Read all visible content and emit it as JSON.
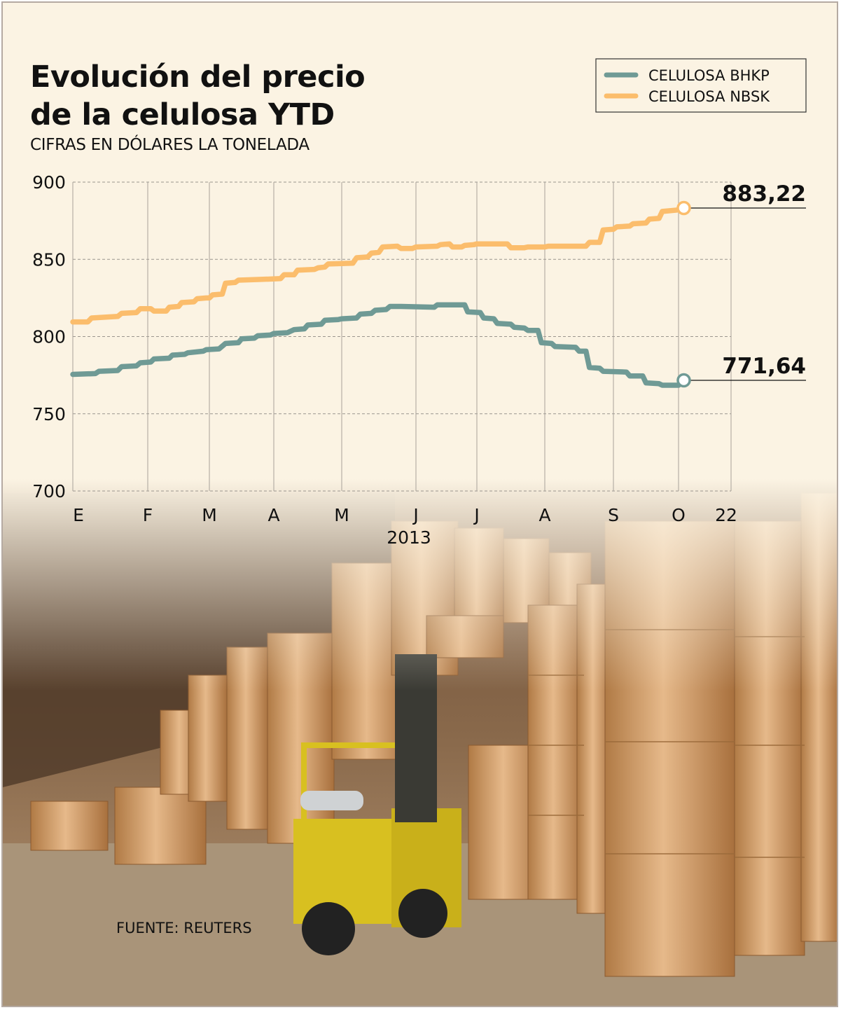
{
  "chart_data": {
    "type": "line",
    "title_lines": [
      "Evolución del precio",
      "de la celulosa YTD"
    ],
    "subtitle": "CIFRAS EN DÓLARES LA TONELADA",
    "ylim": [
      700,
      900
    ],
    "y_ticks": [
      "900",
      "850",
      "800",
      "750",
      "700"
    ],
    "x_ticks": [
      "E",
      "F",
      "M",
      "A",
      "M",
      "J",
      "J",
      "A",
      "S",
      "O",
      "22"
    ],
    "x_year_label": "2013",
    "grid": true,
    "legend_position": "top-right",
    "source": "FUENTE: REUTERS",
    "series": [
      {
        "name": "CELULOSA BHKP",
        "color": "#6f9a95",
        "end_label": "771,64",
        "points": [
          [
            0.0,
            775.5
          ],
          [
            0.3,
            776
          ],
          [
            0.35,
            777.5
          ],
          [
            0.6,
            778
          ],
          [
            0.65,
            780.5
          ],
          [
            0.85,
            781
          ],
          [
            0.9,
            783
          ],
          [
            1.05,
            783.5
          ],
          [
            1.1,
            785.5
          ],
          [
            1.35,
            786
          ],
          [
            1.4,
            788
          ],
          [
            1.6,
            788.5
          ],
          [
            1.65,
            789.5
          ],
          [
            1.9,
            790.5
          ],
          [
            1.95,
            791.5
          ],
          [
            2.15,
            792
          ],
          [
            2.25,
            795.5
          ],
          [
            2.45,
            796
          ],
          [
            2.5,
            798.5
          ],
          [
            2.7,
            799
          ],
          [
            2.75,
            800.5
          ],
          [
            2.95,
            801
          ],
          [
            3.0,
            802
          ],
          [
            3.2,
            802.5
          ],
          [
            3.3,
            804.5
          ],
          [
            3.45,
            805
          ],
          [
            3.5,
            807.5
          ],
          [
            3.7,
            808
          ],
          [
            3.75,
            810.5
          ],
          [
            3.95,
            811
          ],
          [
            4.0,
            811.5
          ],
          [
            4.2,
            812
          ],
          [
            4.25,
            814.5
          ],
          [
            4.4,
            815
          ],
          [
            4.45,
            817
          ],
          [
            4.6,
            817.5
          ],
          [
            4.65,
            819.5
          ],
          [
            4.8,
            819.5
          ],
          [
            5.3,
            819
          ],
          [
            5.35,
            820.5
          ],
          [
            5.8,
            820.5
          ],
          [
            5.85,
            816
          ],
          [
            6.05,
            815.5
          ],
          [
            6.1,
            812
          ],
          [
            6.25,
            811.5
          ],
          [
            6.3,
            808.5
          ],
          [
            6.5,
            808
          ],
          [
            6.55,
            806
          ],
          [
            6.7,
            805.5
          ],
          [
            6.75,
            804
          ],
          [
            6.9,
            804
          ],
          [
            6.95,
            796
          ],
          [
            7.1,
            795.5
          ],
          [
            7.15,
            793.5
          ],
          [
            7.45,
            793
          ],
          [
            7.5,
            790.5
          ],
          [
            7.6,
            790.5
          ],
          [
            7.65,
            780
          ],
          [
            7.8,
            779.5
          ],
          [
            7.85,
            777.5
          ],
          [
            8.2,
            777
          ],
          [
            8.25,
            774.5
          ],
          [
            8.45,
            774.5
          ],
          [
            8.5,
            770
          ],
          [
            8.7,
            769.5
          ],
          [
            8.75,
            768.5
          ],
          [
            9.0,
            768.5
          ],
          [
            9.1,
            771.64
          ]
        ]
      },
      {
        "name": "CELULOSA NBSK",
        "color": "#fbbd6c",
        "end_label": "883,22",
        "points": [
          [
            0.0,
            809.5
          ],
          [
            0.2,
            809.5
          ],
          [
            0.25,
            812
          ],
          [
            0.6,
            813
          ],
          [
            0.65,
            815
          ],
          [
            0.85,
            815.5
          ],
          [
            0.9,
            818
          ],
          [
            1.05,
            818
          ],
          [
            1.1,
            816.5
          ],
          [
            1.3,
            816.5
          ],
          [
            1.35,
            819
          ],
          [
            1.5,
            819.5
          ],
          [
            1.55,
            822
          ],
          [
            1.75,
            822.5
          ],
          [
            1.8,
            824.5
          ],
          [
            1.95,
            825
          ],
          [
            2.0,
            825
          ],
          [
            2.05,
            827
          ],
          [
            2.2,
            827.5
          ],
          [
            2.25,
            834.5
          ],
          [
            2.4,
            835
          ],
          [
            2.45,
            836.5
          ],
          [
            2.8,
            837
          ],
          [
            3.1,
            837.5
          ],
          [
            3.15,
            840
          ],
          [
            3.3,
            840
          ],
          [
            3.35,
            843
          ],
          [
            3.6,
            843.5
          ],
          [
            3.65,
            844.5
          ],
          [
            3.75,
            845
          ],
          [
            3.8,
            847
          ],
          [
            4.15,
            847.5
          ],
          [
            4.2,
            851
          ],
          [
            4.35,
            851.5
          ],
          [
            4.4,
            854
          ],
          [
            4.5,
            854.5
          ],
          [
            4.55,
            858
          ],
          [
            4.75,
            858.5
          ],
          [
            4.8,
            857
          ],
          [
            4.95,
            857
          ],
          [
            5.0,
            858
          ],
          [
            5.35,
            858.5
          ],
          [
            5.4,
            859.5
          ],
          [
            5.55,
            860
          ],
          [
            5.6,
            858
          ],
          [
            5.75,
            858
          ],
          [
            5.8,
            859
          ],
          [
            5.95,
            859.5
          ],
          [
            6.0,
            860
          ],
          [
            6.45,
            860
          ],
          [
            6.5,
            857.5
          ],
          [
            6.7,
            857.5
          ],
          [
            6.75,
            858
          ],
          [
            7.0,
            858
          ],
          [
            7.05,
            858.5
          ],
          [
            7.6,
            858.5
          ],
          [
            7.65,
            861
          ],
          [
            7.8,
            861
          ],
          [
            7.85,
            869
          ],
          [
            8.0,
            869.5
          ],
          [
            8.05,
            871
          ],
          [
            8.25,
            871.5
          ],
          [
            8.3,
            873
          ],
          [
            8.5,
            873.5
          ],
          [
            8.55,
            876
          ],
          [
            8.7,
            876.5
          ],
          [
            8.75,
            881
          ],
          [
            9.0,
            882
          ],
          [
            9.1,
            883.22
          ]
        ]
      }
    ]
  }
}
